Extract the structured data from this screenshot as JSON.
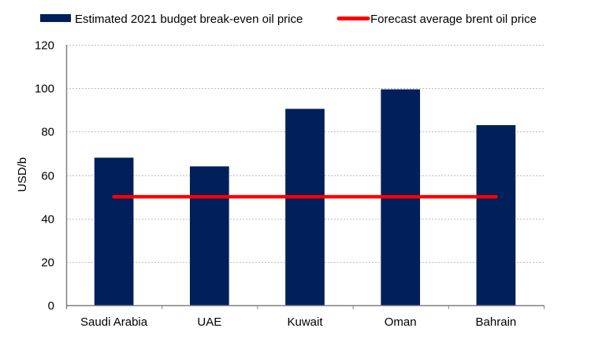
{
  "chart_data": {
    "type": "bar",
    "title": "",
    "xlabel": "",
    "ylabel": "USD/b",
    "ylim": [
      0,
      120
    ],
    "yticks": [
      0,
      20,
      40,
      60,
      80,
      100,
      120
    ],
    "grid": true,
    "legend_position": "top",
    "categories": [
      "Saudi Arabia",
      "UAE",
      "Kuwait",
      "Oman",
      "Bahrain"
    ],
    "series": [
      {
        "name": "Estimated 2021 budget break-even oil price",
        "kind": "bar",
        "color": "#001F5B",
        "values": [
          68,
          64,
          90.5,
          99.5,
          83
        ]
      },
      {
        "name": "Forecast average brent oil price",
        "kind": "line",
        "color": "#FF0000",
        "values": [
          50,
          50,
          50,
          50,
          50
        ]
      }
    ]
  }
}
